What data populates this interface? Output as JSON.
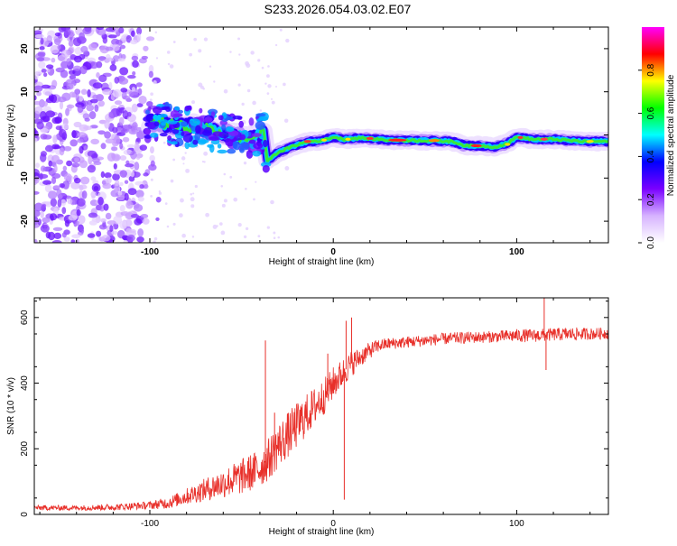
{
  "title": "S233.2026.054.03.02.E07",
  "colors": {
    "snr_line": "#e8302a",
    "axis": "#000000"
  },
  "chart_data": [
    {
      "type": "heatmap",
      "name": "spectrogram",
      "xlabel": "Height of straight line (km)",
      "ylabel": "Frequency (Hz)",
      "xlim": [
        -163,
        150
      ],
      "ylim": [
        -25,
        25
      ],
      "xticks": [
        -100,
        0,
        100
      ],
      "xtick_labels": [
        "-100",
        "0",
        "100"
      ],
      "yticks": [
        20,
        10,
        0,
        -10,
        -20
      ],
      "ytick_labels": [
        "20",
        "10",
        "0",
        "-10",
        "-20"
      ],
      "ridge": {
        "x": [
          -102,
          -95,
          -85,
          -75,
          -65,
          -55,
          -45,
          -38,
          -36,
          -30,
          -24,
          -18,
          -12,
          -6,
          0,
          6,
          15,
          30,
          50,
          65,
          72,
          80,
          88,
          95,
          100,
          108,
          120,
          135,
          150
        ],
        "freq": [
          3,
          3,
          2,
          2,
          1,
          0,
          -1,
          1,
          -6,
          -4,
          -3,
          -2,
          -1.5,
          -1.3,
          -0.5,
          -1,
          -0.7,
          -1.2,
          -1.3,
          -1.5,
          -2.5,
          -2.5,
          -2.8,
          -2,
          -0.5,
          -1,
          -1,
          -1.5,
          -1.5
        ]
      },
      "colorbar": {
        "label": "Normalized spectral amplitude",
        "range": [
          0,
          1
        ],
        "ticks": [
          0.0,
          0.2,
          0.4,
          0.6,
          0.8
        ],
        "tick_labels": [
          "0.0",
          "0.2",
          "0.4",
          "0.6",
          "0.8"
        ],
        "stops": [
          "#ffffff",
          "#d6b3ff",
          "#7a00ff",
          "#0000ff",
          "#00ffff",
          "#00ff00",
          "#ffff00",
          "#ff0000",
          "#ff00ff"
        ]
      }
    },
    {
      "type": "line",
      "name": "snr",
      "xlabel": "Height of straight line (km)",
      "ylabel": "SNR (10 * v/v)",
      "xlim": [
        -163,
        150
      ],
      "ylim": [
        0,
        660
      ],
      "xticks": [
        -100,
        0,
        100
      ],
      "xtick_labels": [
        "-100",
        "0",
        "100"
      ],
      "yticks": [
        0,
        200,
        400,
        600
      ],
      "ytick_labels": [
        "0",
        "200",
        "400",
        "600"
      ],
      "series": [
        {
          "name": "SNR",
          "x": [
            -163,
            -140,
            -120,
            -100,
            -90,
            -80,
            -70,
            -60,
            -50,
            -40,
            -35,
            -30,
            -25,
            -20,
            -15,
            -10,
            -5,
            0,
            5,
            10,
            15,
            20,
            25,
            30,
            40,
            50,
            60,
            70,
            80,
            90,
            100,
            110,
            120,
            130,
            140,
            150
          ],
          "values": [
            20,
            20,
            22,
            28,
            35,
            55,
            75,
            95,
            115,
            140,
            170,
            210,
            240,
            270,
            300,
            330,
            360,
            400,
            430,
            460,
            480,
            500,
            515,
            520,
            525,
            530,
            535,
            538,
            540,
            542,
            545,
            545,
            548,
            550,
            550,
            552
          ],
          "amplitude": [
            8,
            8,
            10,
            12,
            18,
            25,
            35,
            45,
            55,
            60,
            65,
            70,
            70,
            70,
            65,
            60,
            55,
            50,
            45,
            40,
            30,
            25,
            20,
            18,
            18,
            18,
            18,
            18,
            18,
            18,
            20,
            20,
            20,
            20,
            18,
            18
          ]
        }
      ],
      "spikes": [
        {
          "x": -37,
          "value": 530
        },
        {
          "x": -32,
          "value": 310
        },
        {
          "x": -3,
          "value": 490
        },
        {
          "x": 6,
          "value": 45
        },
        {
          "x": 7,
          "value": 590
        },
        {
          "x": 10,
          "value": 600
        },
        {
          "x": 115,
          "value": 660
        },
        {
          "x": 116,
          "value": 440
        }
      ]
    }
  ]
}
